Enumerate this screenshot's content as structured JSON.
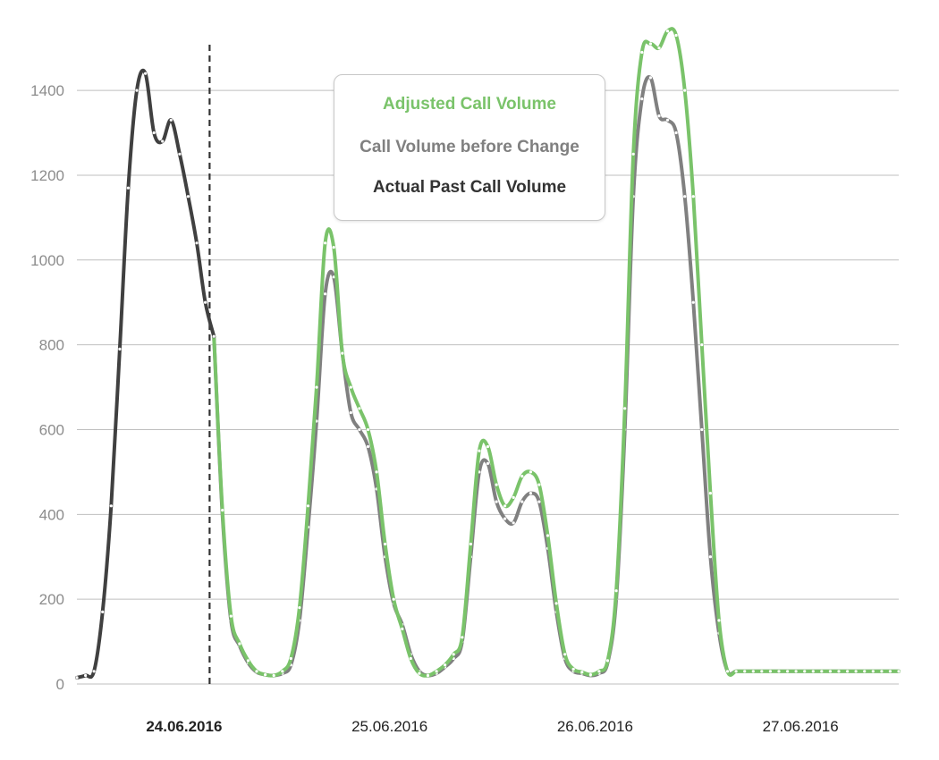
{
  "chart_data": {
    "type": "line",
    "title": "",
    "xlabel": "",
    "ylabel": "",
    "ylim": [
      0,
      1550
    ],
    "yticks": [
      0,
      200,
      400,
      600,
      800,
      1000,
      1200,
      1400
    ],
    "xlim": [
      0,
      96
    ],
    "grid": "horizontal",
    "legend_position": "top-center",
    "x_tick_labels": [
      {
        "x": 12,
        "label": "24.06.2016",
        "bold": true
      },
      {
        "x": 36,
        "label": "25.06.2016",
        "bold": false
      },
      {
        "x": 60,
        "label": "26.06.2016",
        "bold": false
      },
      {
        "x": 84,
        "label": "27.06.2016",
        "bold": false
      }
    ],
    "change_marker_x": 15.5,
    "series": [
      {
        "name": "Actual Past Call Volume",
        "color": "#404040",
        "x": [
          0,
          1,
          2,
          3,
          4,
          5,
          6,
          7,
          8,
          9,
          10,
          11,
          12,
          13,
          14,
          15,
          16
        ],
        "values": [
          15,
          20,
          30,
          170,
          420,
          790,
          1170,
          1400,
          1440,
          1300,
          1280,
          1330,
          1250,
          1150,
          1040,
          900,
          820
        ]
      },
      {
        "name": "Call Volume before Change",
        "color": "#808080",
        "x": [
          16,
          17,
          18,
          19,
          20,
          21,
          22,
          23,
          24,
          25,
          26,
          27,
          28,
          29,
          30,
          31,
          32,
          33,
          34,
          35,
          36,
          37,
          38,
          39,
          40,
          41,
          42,
          43,
          44,
          45,
          46,
          47,
          48,
          49,
          50,
          51,
          52,
          53,
          54,
          55,
          56,
          57,
          58,
          59,
          60,
          61,
          62,
          63,
          64,
          65,
          66,
          67,
          68,
          69,
          70,
          71,
          72,
          73,
          74,
          75,
          76,
          77,
          78,
          79,
          80,
          81,
          82,
          83,
          84,
          85,
          86,
          87,
          88,
          89,
          90,
          91,
          92,
          93,
          94,
          95,
          96
        ],
        "values": [
          820,
          400,
          150,
          90,
          50,
          28,
          22,
          20,
          25,
          45,
          150,
          370,
          620,
          920,
          960,
          780,
          640,
          600,
          560,
          460,
          300,
          190,
          140,
          70,
          30,
          20,
          25,
          40,
          60,
          100,
          300,
          500,
          520,
          430,
          390,
          380,
          430,
          450,
          430,
          320,
          170,
          60,
          30,
          25,
          20,
          25,
          50,
          200,
          600,
          1150,
          1380,
          1430,
          1340,
          1330,
          1300,
          1150,
          900,
          600,
          300,
          120,
          30,
          30,
          30,
          30,
          30,
          30,
          30,
          30,
          30,
          30,
          30,
          30,
          30,
          30,
          30,
          30,
          30,
          30,
          30,
          30,
          30
        ]
      },
      {
        "name": "Adjusted Call Volume",
        "color": "#7ac36a",
        "x": [
          16,
          17,
          18,
          19,
          20,
          21,
          22,
          23,
          24,
          25,
          26,
          27,
          28,
          29,
          30,
          31,
          32,
          33,
          34,
          35,
          36,
          37,
          38,
          39,
          40,
          41,
          42,
          43,
          44,
          45,
          46,
          47,
          48,
          49,
          50,
          51,
          52,
          53,
          54,
          55,
          56,
          57,
          58,
          59,
          60,
          61,
          62,
          63,
          64,
          65,
          66,
          67,
          68,
          69,
          70,
          71,
          72,
          73,
          74,
          75,
          76,
          77,
          78,
          79,
          80,
          81,
          82,
          83,
          84,
          85,
          86,
          87,
          88,
          89,
          90,
          91,
          92,
          93,
          94,
          95,
          96
        ],
        "values": [
          820,
          410,
          160,
          95,
          55,
          30,
          22,
          20,
          30,
          60,
          180,
          420,
          700,
          1040,
          1030,
          780,
          700,
          650,
          600,
          500,
          330,
          200,
          130,
          60,
          25,
          20,
          30,
          45,
          70,
          110,
          330,
          550,
          560,
          470,
          420,
          440,
          490,
          500,
          470,
          350,
          190,
          70,
          35,
          28,
          22,
          30,
          55,
          220,
          650,
          1250,
          1490,
          1510,
          1500,
          1540,
          1530,
          1400,
          1150,
          800,
          450,
          150,
          30,
          30,
          30,
          30,
          30,
          30,
          30,
          30,
          30,
          30,
          30,
          30,
          30,
          30,
          30,
          30,
          30,
          30,
          30,
          30,
          30
        ]
      }
    ]
  },
  "legend": {
    "items": [
      {
        "label": "Adjusted Call Volume",
        "color": "#7ac36a"
      },
      {
        "label": "Call Volume before Change",
        "color": "#808080"
      },
      {
        "label": "Actual Past Call Volume",
        "color": "#333333"
      }
    ]
  }
}
